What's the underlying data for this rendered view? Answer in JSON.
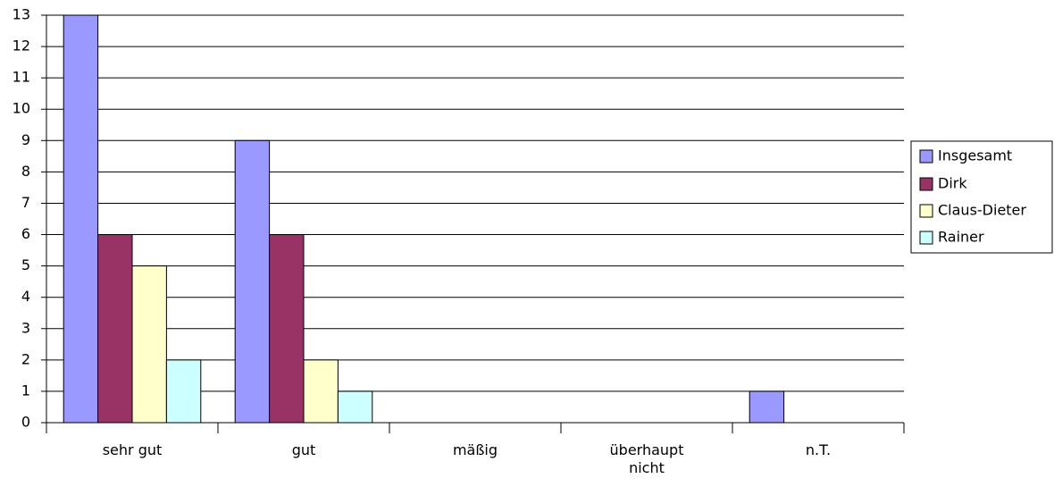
{
  "chart_data": {
    "type": "bar",
    "categories": [
      "sehr gut",
      "gut",
      "mäßig",
      "überhaupt nicht",
      "n.T."
    ],
    "series": [
      {
        "name": "Insgesamt",
        "color": "#9999ff",
        "values": [
          13,
          9,
          0,
          0,
          1
        ]
      },
      {
        "name": "Dirk",
        "color": "#993366",
        "values": [
          6,
          6,
          0,
          0,
          0
        ]
      },
      {
        "name": "Claus-Dieter",
        "color": "#ffffcc",
        "values": [
          5,
          2,
          0,
          0,
          0
        ]
      },
      {
        "name": "Rainer",
        "color": "#ccffff",
        "values": [
          2,
          1,
          0,
          0,
          0
        ]
      }
    ],
    "ylim": [
      0,
      13
    ],
    "yticks": [
      0,
      1,
      2,
      3,
      4,
      5,
      6,
      7,
      8,
      9,
      10,
      11,
      12,
      13
    ],
    "grid": true,
    "legend": "right"
  }
}
